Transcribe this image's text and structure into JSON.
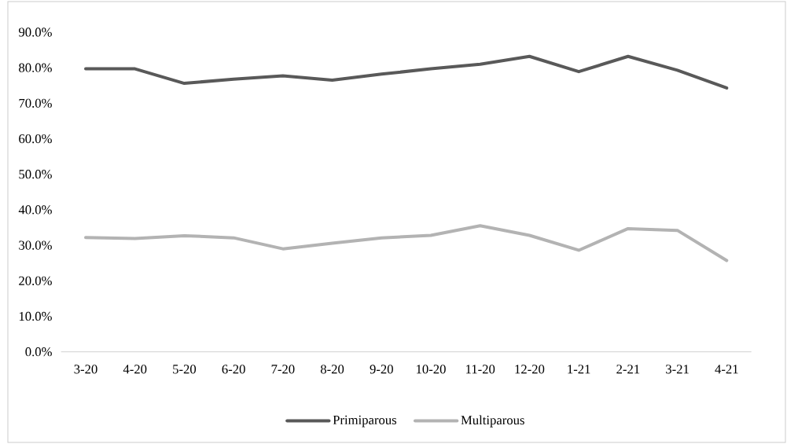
{
  "chart_data": {
    "type": "line",
    "categories": [
      "3-20",
      "4-20",
      "5-20",
      "6-20",
      "7-20",
      "8-20",
      "9-20",
      "10-20",
      "11-20",
      "12-20",
      "1-21",
      "2-21",
      "3-21",
      "4-21"
    ],
    "series": [
      {
        "name": "Primiparous",
        "color": "#595959",
        "values": [
          79.7,
          79.7,
          75.6,
          76.8,
          77.7,
          76.5,
          78.2,
          79.7,
          81.0,
          83.2,
          78.9,
          83.2,
          79.3,
          74.3
        ]
      },
      {
        "name": "Multiparous",
        "color": "#b3b3b3",
        "values": [
          32.2,
          31.9,
          32.7,
          32.1,
          29.0,
          30.6,
          32.1,
          32.8,
          35.5,
          32.8,
          28.6,
          34.7,
          34.2,
          25.7
        ]
      }
    ],
    "ylim": [
      0,
      90
    ],
    "yticks": [
      {
        "value": 0,
        "label": "0.0%"
      },
      {
        "value": 10,
        "label": "10.0%"
      },
      {
        "value": 20,
        "label": "20.0%"
      },
      {
        "value": 30,
        "label": "30.0%"
      },
      {
        "value": 40,
        "label": "40.0%"
      },
      {
        "value": 50,
        "label": "50.0%"
      },
      {
        "value": 60,
        "label": "60.0%"
      },
      {
        "value": 70,
        "label": "70.0%"
      },
      {
        "value": 80,
        "label": "80.0%"
      },
      {
        "value": 90,
        "label": "90.0%"
      }
    ],
    "legend": "bottom",
    "grid": false,
    "line_style": "solid",
    "marker": "none"
  }
}
